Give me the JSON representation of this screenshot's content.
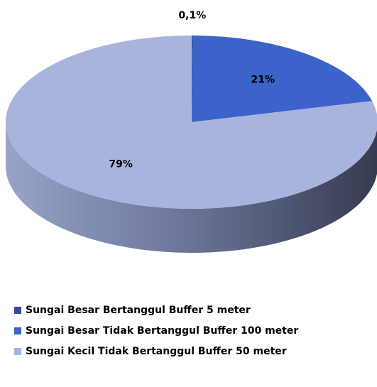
{
  "chart_data": {
    "type": "pie",
    "categories": [
      "Sungai Besar Bertanggul Buffer 5 meter",
      "Sungai Besar Tidak Bertanggul Buffer 100 meter",
      "Sungai Kecil Tidak Bertanggul Buffer 50 meter"
    ],
    "values": [
      0.1,
      21,
      79
    ],
    "value_labels": [
      "0,1%",
      "21%",
      "79%"
    ],
    "colors": [
      "#2f4b9f",
      "#3b63c9",
      "#a9b4de"
    ],
    "legend": "bottom"
  }
}
